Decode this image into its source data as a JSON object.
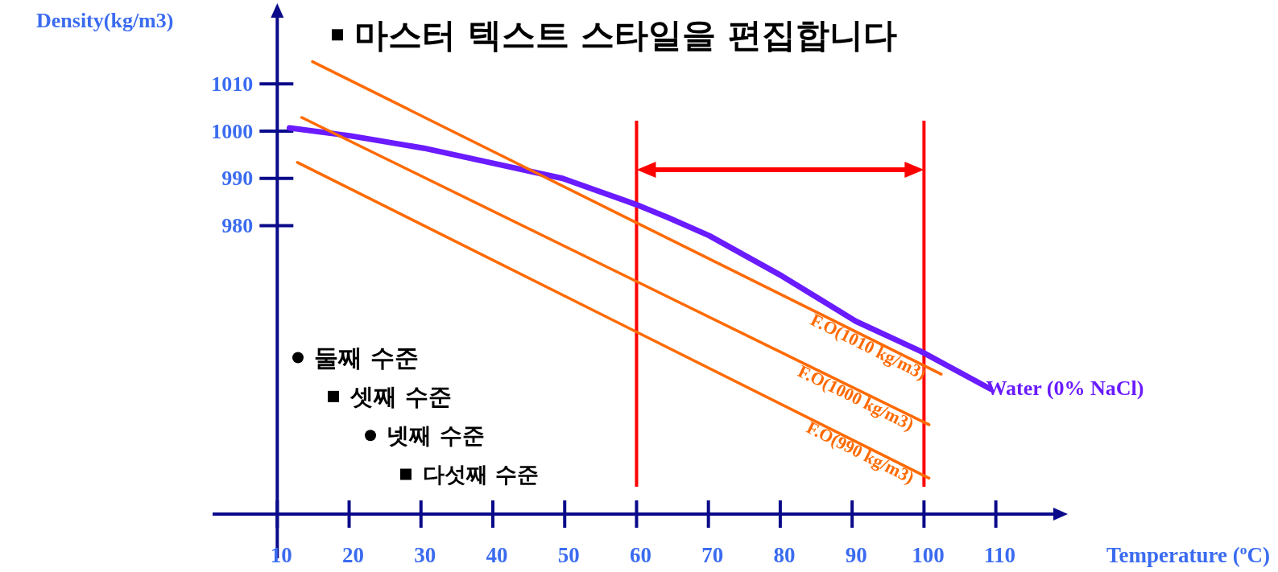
{
  "chart_data": {
    "type": "line",
    "title": "Density(kg/m3)",
    "xlabel": "Temperature ($^{o}$C)",
    "series": [
      {
        "name": "Water (0% NaCl)",
        "color": "#6a1bff",
        "x": [
          11.7,
          20.2,
          30.4,
          39.5,
          49.7,
          59.9,
          64.4,
          70.1,
          80.3,
          90.5,
          99.6,
          109.2
        ],
        "values": [
          1000.7,
          999.0,
          996.4,
          993.4,
          990.0,
          984.5,
          981.7,
          977.9,
          969.3,
          959.8,
          953.4,
          945.5
        ]
      },
      {
        "name": "F.O(1010 kg/m3)",
        "color": "#ff6a00",
        "x": [
          14.9,
          102.4
        ],
        "values": [
          1014.7,
          948.6
        ]
      },
      {
        "name": "F.O(1000 kg/m3)",
        "color": "#ff6a00",
        "x": [
          13.4,
          100.7
        ],
        "values": [
          1002.9,
          937.9
        ]
      },
      {
        "name": "F.O(990 kg/m3)",
        "color": "#ff6a00",
        "x": [
          12.8,
          100.7
        ],
        "values": [
          993.4,
          926.6
        ]
      }
    ],
    "xlim": [
      1,
      118
    ],
    "ylim": [
      919,
      1024
    ],
    "xticks": [
      10,
      20,
      30,
      40,
      50,
      60,
      70,
      80,
      90,
      100,
      110
    ],
    "yticks": [
      980,
      990,
      1000,
      1010
    ],
    "ref_lines": [
      {
        "axis": "x",
        "value": 60,
        "color": "#ff0000"
      },
      {
        "axis": "x",
        "value": 100,
        "color": "#ff0000"
      }
    ],
    "annotations": [
      "마스터 텍스트 스타일을 편집합니다",
      "둘째 수준",
      "셋째 수준",
      "넷째 수준",
      "다섯째 수준"
    ],
    "marker": "none",
    "line_style": "solid",
    "grid": false
  }
}
